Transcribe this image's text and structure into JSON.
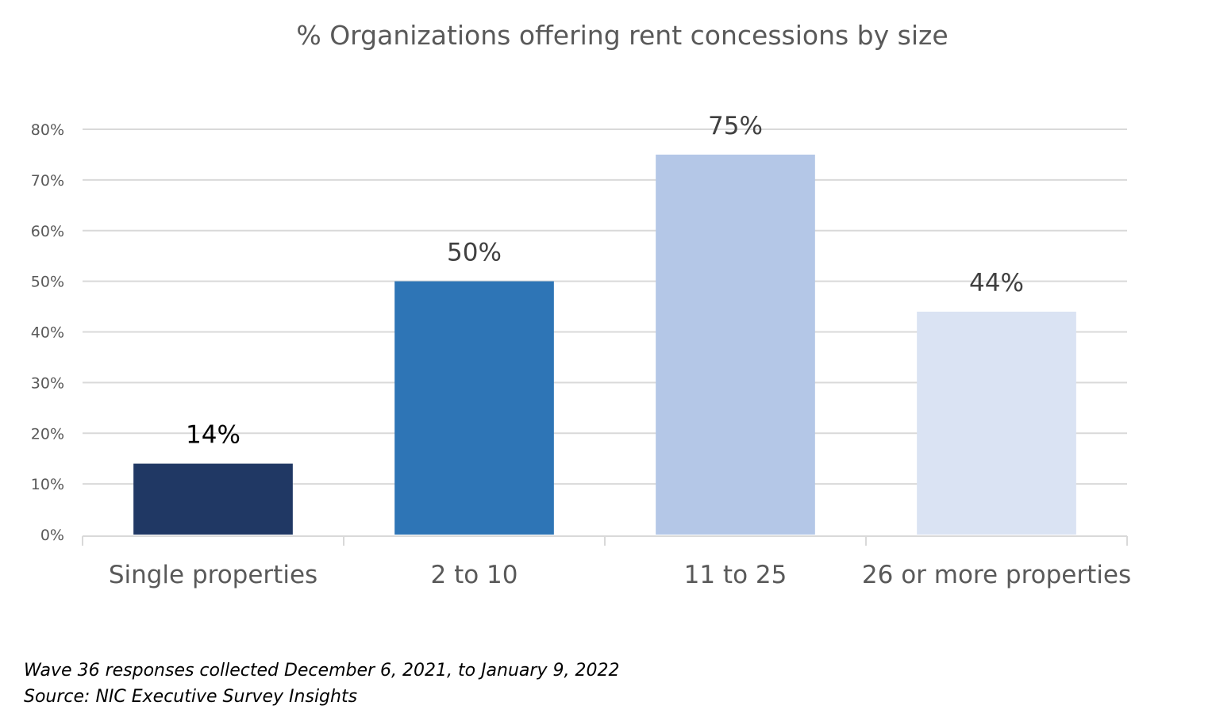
{
  "chart_data": {
    "type": "bar",
    "title": "% Organizations offering rent concessions by size",
    "categories": [
      "Single properties",
      "2 to 10",
      "11 to 25",
      "26 or more properties"
    ],
    "values": [
      14,
      50,
      75,
      44
    ],
    "data_labels": [
      "14%",
      "50%",
      "75%",
      "44%"
    ],
    "bar_colors": [
      "#203864",
      "#2E75B6",
      "#B4C7E7",
      "#DAE3F3"
    ],
    "label_colors": [
      "#000000",
      "#404040",
      "#404040",
      "#404040"
    ],
    "ylim": [
      0,
      80
    ],
    "yticks": [
      0,
      10,
      20,
      30,
      40,
      50,
      60,
      70,
      80
    ],
    "ytick_labels": [
      "0%",
      "10%",
      "20%",
      "30%",
      "40%",
      "50%",
      "60%",
      "70%",
      "80%"
    ],
    "xlabel": "",
    "ylabel": "",
    "grid": true,
    "legend": "none"
  },
  "notes": {
    "line1": "Wave 36 responses collected December 6, 2021, to January 9, 2022",
    "line2": "Source: NIC Executive Survey Insights"
  }
}
